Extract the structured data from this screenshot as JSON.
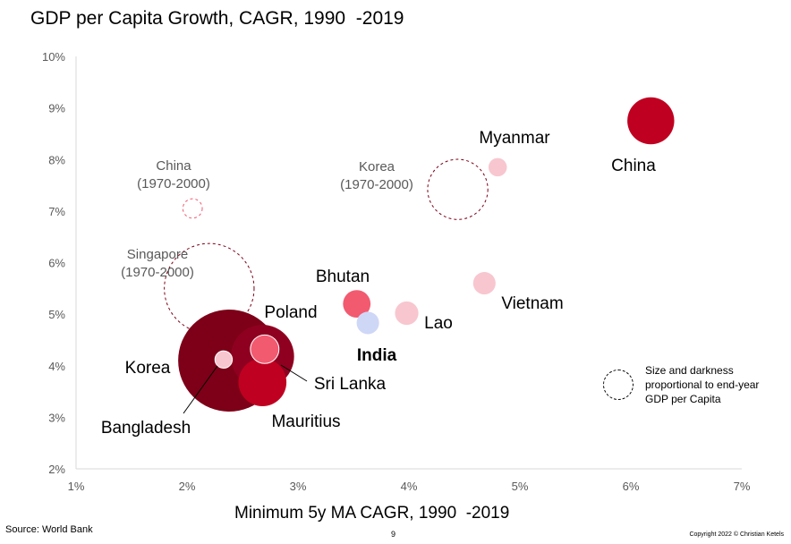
{
  "page": {
    "source": "Source: World Bank",
    "page_number": "9",
    "copyright": "Copyright 2022 © Christian Ketels",
    "legend_note": "Size and darkness proportional to end-year GDP per Capita"
  },
  "chart_data": {
    "type": "scatter",
    "subtype": "bubble",
    "title": "GDP per Capita Growth, CAGR, 1990  -2019",
    "xlabel": "Minimum 5y MA CAGR, 1990  -2019",
    "ylabel": "",
    "xlim": [
      1,
      7
    ],
    "ylim": [
      2,
      10
    ],
    "x_ticks": [
      "1%",
      "2%",
      "3%",
      "4%",
      "5%",
      "6%",
      "7%"
    ],
    "y_ticks": [
      "2%",
      "3%",
      "4%",
      "5%",
      "6%",
      "7%",
      "8%",
      "9%",
      "10%"
    ],
    "grid": false,
    "legend": "right",
    "points": [
      {
        "label": "China",
        "x": 6.18,
        "y": 8.75,
        "size": 0.46,
        "color": "#c00020",
        "style": "solid",
        "label_bold": false
      },
      {
        "label": "Myanmar",
        "x": 4.8,
        "y": 7.85,
        "size": 0.18,
        "color": "#f8c6cf",
        "style": "solid",
        "label_bold": false
      },
      {
        "label": "Vietnam",
        "x": 4.68,
        "y": 5.6,
        "size": 0.22,
        "color": "#f8c6cf",
        "style": "solid",
        "label_bold": false
      },
      {
        "label": "Lao",
        "x": 3.98,
        "y": 5.02,
        "size": 0.23,
        "color": "#f8c6cf",
        "style": "solid",
        "label_bold": false
      },
      {
        "label": "Bhutan",
        "x": 3.53,
        "y": 5.2,
        "size": 0.27,
        "color": "#f25a70",
        "style": "solid",
        "label_bold": false
      },
      {
        "label": "India",
        "x": 3.63,
        "y": 4.83,
        "size": 0.22,
        "color": "#cfd7f7",
        "style": "solid",
        "label_bold": true
      },
      {
        "label": "Korea",
        "x": 2.38,
        "y": 4.1,
        "size": 1.0,
        "color": "#7d0018",
        "style": "solid",
        "label_bold": false
      },
      {
        "label": "Poland",
        "x": 2.68,
        "y": 4.18,
        "size": 0.62,
        "color": "#8f0020",
        "style": "solid",
        "label_bold": false
      },
      {
        "label": "Mauritius",
        "x": 2.68,
        "y": 3.68,
        "size": 0.47,
        "color": "#c00020",
        "style": "solid",
        "label_bold": false
      },
      {
        "label": "Sri Lanka",
        "x": 2.7,
        "y": 4.32,
        "size": 0.28,
        "color": "#f25a70",
        "style": "solid",
        "label_bold": false
      },
      {
        "label": "Bangladesh",
        "x": 2.33,
        "y": 4.12,
        "size": 0.17,
        "color": "#f8c6cf",
        "style": "solid",
        "label_bold": false
      },
      {
        "label": "China\n(1970-2000)",
        "x": 2.05,
        "y": 7.05,
        "size": 0.19,
        "color": "#f25a70",
        "style": "dashed",
        "label_bold": false
      },
      {
        "label": "Korea\n(1970-2000)",
        "x": 4.44,
        "y": 7.42,
        "size": 0.59,
        "color": "#7d0018",
        "style": "dashed",
        "label_bold": false
      },
      {
        "label": "Singapore\n(1970-2000)",
        "x": 2.2,
        "y": 5.5,
        "size": 0.88,
        "color": "#7d0018",
        "style": "dashed",
        "label_bold": false
      }
    ]
  }
}
